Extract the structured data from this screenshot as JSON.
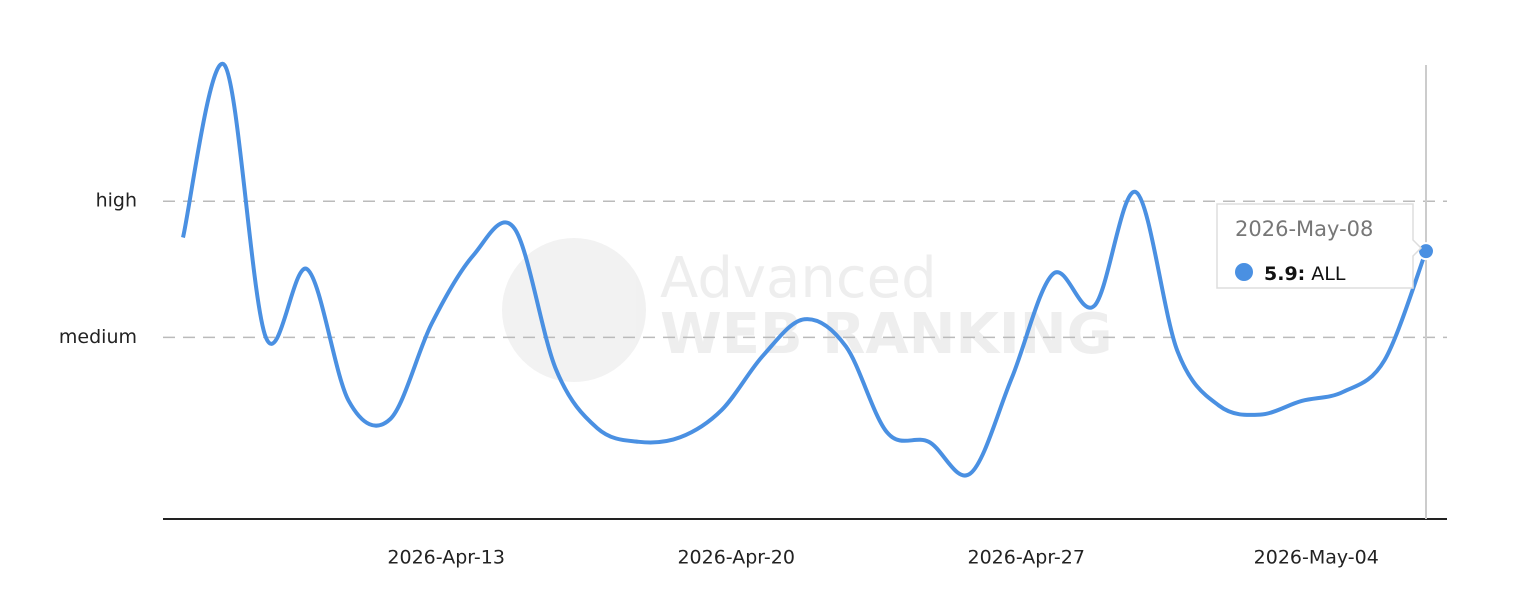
{
  "chart_data": {
    "type": "line",
    "categories": [
      null,
      null,
      null,
      null,
      null,
      "2026-Apr-13",
      null,
      null,
      null,
      null,
      null,
      null,
      "2026-Apr-20",
      null,
      null,
      null,
      null,
      null,
      null,
      "2026-Apr-27",
      null,
      null,
      null,
      null,
      null,
      null,
      "2026-May-04",
      null,
      null,
      null,
      "2026-May-08"
    ],
    "series": [
      {
        "name": "ALL",
        "color": "#4a90e2",
        "values": [
          6.2,
          10.0,
          4.0,
          5.5,
          2.6,
          2.2,
          4.3,
          5.8,
          6.4,
          3.3,
          2.0,
          1.7,
          1.8,
          2.4,
          3.6,
          4.4,
          3.8,
          1.9,
          1.7,
          1.0,
          3.1,
          5.4,
          4.7,
          7.2,
          3.7,
          2.5,
          2.3,
          2.6,
          2.8,
          3.5,
          5.9
        ],
        "value_labels": [
          null,
          null,
          null,
          null,
          null,
          null,
          null,
          null,
          null,
          null,
          null,
          null,
          null,
          null,
          null,
          null,
          null,
          null,
          null,
          null,
          null,
          null,
          null,
          null,
          null,
          null,
          null,
          null,
          null,
          null,
          "5.9:"
        ]
      }
    ],
    "ylim": [
      0,
      10
    ],
    "yticks": [
      {
        "value": 4,
        "label": "medium"
      },
      {
        "value": 7,
        "label": "high"
      }
    ],
    "grid": true,
    "watermark": [
      "Advanced",
      "WEB RANKING"
    ]
  }
}
